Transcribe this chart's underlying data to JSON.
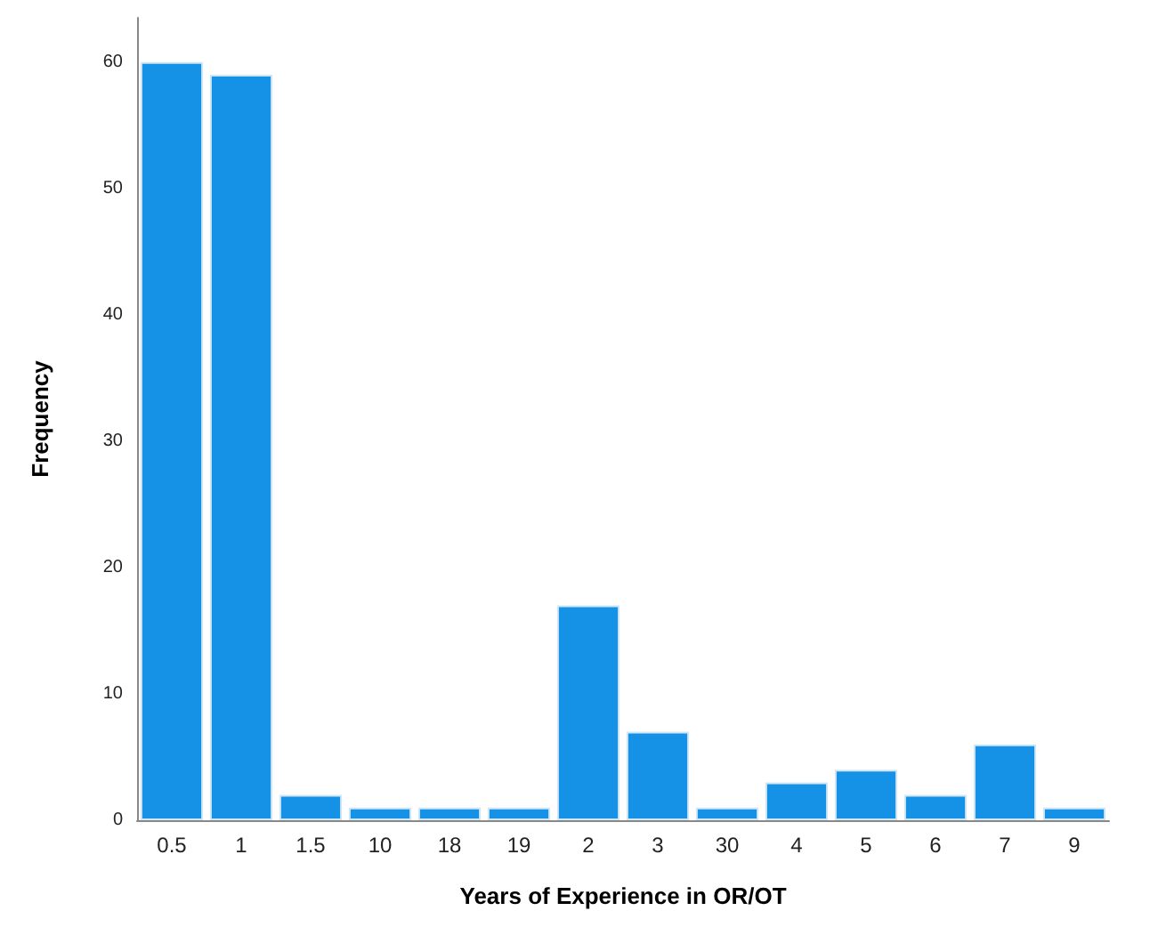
{
  "chart_data": {
    "type": "bar",
    "xlabel": "Years of Experience in OR/OT",
    "ylabel": "Frequency",
    "categories": [
      "0.5",
      "1",
      "1.5",
      "10",
      "18",
      "19",
      "2",
      "3",
      "30",
      "4",
      "5",
      "6",
      "7",
      "9"
    ],
    "values": [
      60,
      59,
      2,
      1,
      1,
      1,
      17,
      7,
      1,
      3,
      4,
      2,
      6,
      1
    ],
    "color": "#1591e6",
    "ylim": [
      0,
      63.5
    ],
    "yticks": [
      0,
      10,
      20,
      30,
      40,
      50,
      60
    ],
    "grid": false
  }
}
